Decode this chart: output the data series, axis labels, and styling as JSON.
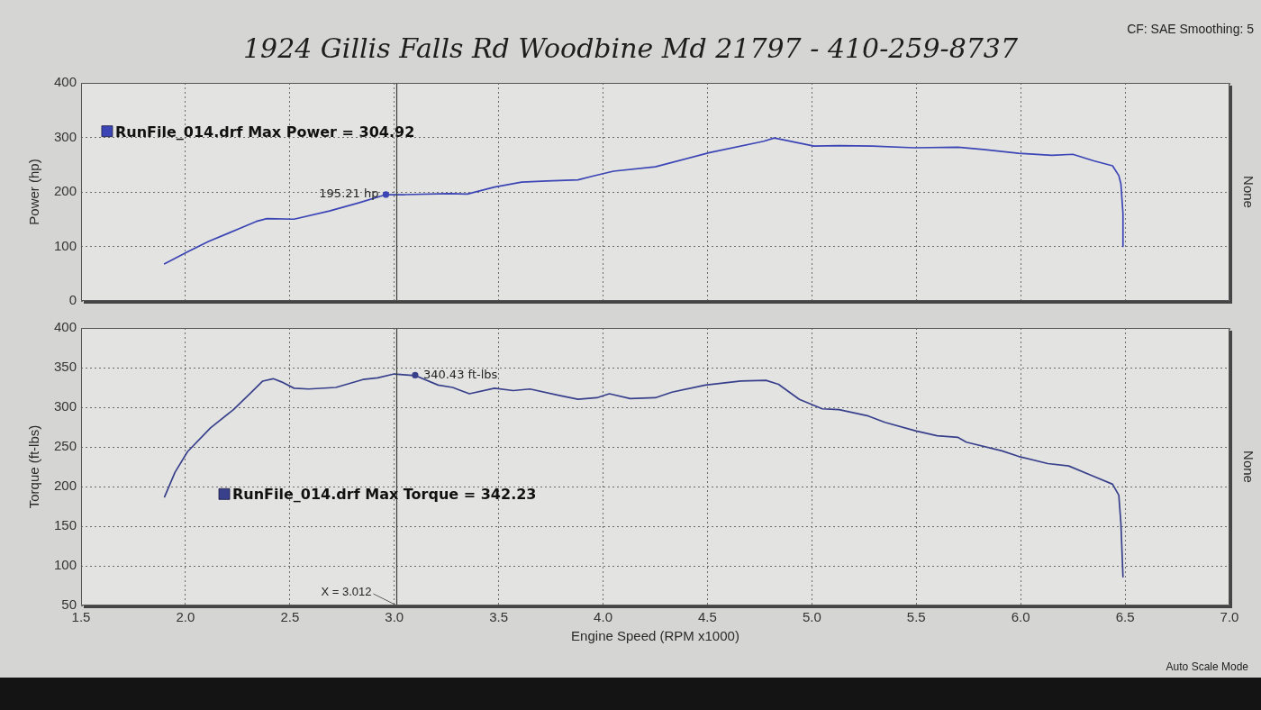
{
  "chart_data": [
    {
      "type": "line",
      "title": "1924 Gillis Falls Rd Woodbine Md 21797 - 410-259-8737",
      "ylabel": "Power (hp)",
      "y2label": "None",
      "series": [
        {
          "name": "RunFile_014.drf Max Power = 304.92",
          "color": "#3b45b5",
          "x": [
            1.9,
            1.95,
            2.01,
            2.11,
            2.21,
            2.34,
            2.39,
            2.52,
            2.69,
            2.83,
            2.96,
            3.05,
            3.26,
            3.35,
            3.48,
            3.61,
            3.73,
            3.88,
            3.95,
            4.05,
            4.25,
            4.51,
            4.77,
            4.82,
            4.92,
            5.01,
            5.13,
            5.29,
            5.49,
            5.7,
            5.82,
            5.99,
            6.15,
            6.25,
            6.35,
            6.44,
            6.47,
            6.48,
            6.49,
            6.49
          ],
          "values": [
            68,
            78,
            90,
            109,
            125,
            146,
            151,
            150,
            165,
            180,
            195,
            195,
            197,
            196,
            209,
            218,
            220,
            222,
            229,
            238,
            246,
            272,
            293,
            299,
            291,
            284,
            285,
            284,
            281,
            282,
            278,
            271,
            267,
            269,
            257,
            248,
            230,
            215,
            160,
            100
          ]
        }
      ],
      "xlim": [
        1.5,
        7.0
      ],
      "xticks": [
        1.5,
        2,
        2.5,
        3,
        3.5,
        4,
        4.5,
        5,
        5.5,
        6,
        6.5,
        7
      ],
      "ylim": [
        0,
        400
      ],
      "yticks": [
        0,
        100,
        200,
        300,
        400
      ],
      "grid": true,
      "legend": "top left",
      "tick_labels": "y",
      "ref_lines": [
        {
          "axis": "x",
          "value": 3.012
        }
      ],
      "annotations": [
        "CF: SAE Smoothing: 5",
        {
          "text": "195.21 hp",
          "x": 2.96,
          "y": 195.21
        }
      ]
    },
    {
      "type": "line",
      "xlabel": "Engine Speed (RPM x1000)",
      "ylabel": "Torque (ft-lbs)",
      "y2label": "None",
      "series": [
        {
          "name": "RunFile_014.drf Max Torque = 342.23",
          "color": "#38408c",
          "x": [
            1.9,
            1.95,
            2.01,
            2.12,
            2.23,
            2.32,
            2.37,
            2.42,
            2.46,
            2.52,
            2.59,
            2.72,
            2.85,
            2.92,
            3.0,
            3.1,
            3.21,
            3.28,
            3.36,
            3.48,
            3.57,
            3.65,
            3.79,
            3.88,
            3.97,
            4.03,
            4.13,
            4.25,
            4.33,
            4.49,
            4.66,
            4.78,
            4.84,
            4.94,
            5.05,
            5.13,
            5.27,
            5.35,
            5.5,
            5.6,
            5.7,
            5.74,
            5.91,
            5.99,
            6.13,
            6.23,
            6.34,
            6.44,
            6.47,
            6.48,
            6.49
          ],
          "values": [
            187,
            218,
            244,
            274,
            297,
            320,
            333,
            336,
            332,
            324,
            323,
            325,
            335,
            337,
            342,
            340,
            328,
            325,
            317,
            324,
            321,
            323,
            315,
            310,
            312,
            317,
            311,
            312,
            319,
            328,
            333,
            334,
            329,
            310,
            298,
            297,
            289,
            281,
            270,
            264,
            262,
            256,
            245,
            238,
            229,
            226,
            214,
            203,
            189,
            154,
            86
          ]
        }
      ],
      "xlim": [
        1.5,
        7.0
      ],
      "xticks": [
        1.5,
        {
          "value": 2,
          "label": "2.0"
        },
        2.5,
        {
          "value": 3,
          "label": "3.0"
        },
        3.5,
        {
          "value": 4,
          "label": "4.0"
        },
        4.5,
        {
          "value": 5,
          "label": "5.0"
        },
        5.5,
        {
          "value": 6,
          "label": "6.0"
        },
        6.5,
        {
          "value": 7,
          "label": "7.0"
        }
      ],
      "ylim": [
        50,
        400
      ],
      "yticks": [
        50,
        100,
        150,
        200,
        250,
        300,
        350,
        400
      ],
      "grid": true,
      "legend": "left",
      "ref_lines": [
        {
          "axis": "x",
          "value": 3.012,
          "label": "X = 3.012"
        }
      ],
      "annotations": [
        {
          "text": "340.43 ft-lbs",
          "x": 3.1,
          "y": 340.43
        },
        "Auto Scale Mode"
      ]
    }
  ]
}
